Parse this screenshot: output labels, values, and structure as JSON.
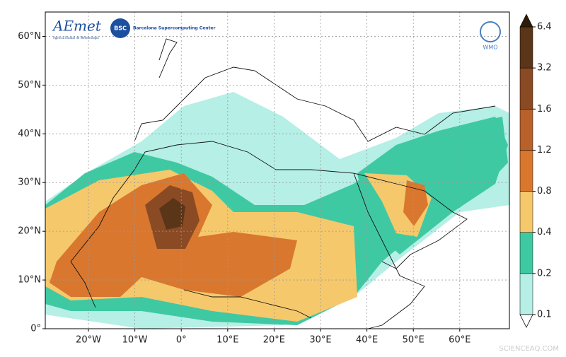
{
  "chart_data": {
    "type": "map",
    "xlim": [
      -29.3,
      70.7
    ],
    "ylim": [
      0,
      65
    ],
    "xticks": [
      {
        "value": -20,
        "label": "20°W"
      },
      {
        "value": -10,
        "label": "10°W"
      },
      {
        "value": 0,
        "label": "0°"
      },
      {
        "value": 10,
        "label": "10°E"
      },
      {
        "value": 20,
        "label": "20°E"
      },
      {
        "value": 30,
        "label": "30°E"
      },
      {
        "value": 40,
        "label": "40°E"
      },
      {
        "value": 50,
        "label": "50°E"
      },
      {
        "value": 60,
        "label": "60°E"
      }
    ],
    "yticks": [
      {
        "value": 0,
        "label": "0°"
      },
      {
        "value": 10,
        "label": "10°N"
      },
      {
        "value": 20,
        "label": "20°N"
      },
      {
        "value": 30,
        "label": "30°N"
      },
      {
        "value": 40,
        "label": "40°N"
      },
      {
        "value": 50,
        "label": "50°N"
      },
      {
        "value": 60,
        "label": "60°N"
      }
    ],
    "grid": true,
    "colorbar": {
      "levels": [
        0.1,
        0.2,
        0.4,
        0.8,
        1.2,
        1.6,
        3.2,
        6.4
      ],
      "colors": [
        "#b5efe6",
        "#3fc9a3",
        "#f6c86c",
        "#d9772f",
        "#b9612b",
        "#8a4a24",
        "#5b3518"
      ],
      "extend_color": "#2c1a0b"
    },
    "logos": {
      "aemet": "AEmet",
      "aemet_sub": "Agencia Estatal de Meteorología",
      "bsc": "BSC",
      "bsc_name": "Barcelona Supercomputing Center",
      "wmo": "WMO"
    },
    "watermark": "SCIENCEAQ.COM"
  }
}
